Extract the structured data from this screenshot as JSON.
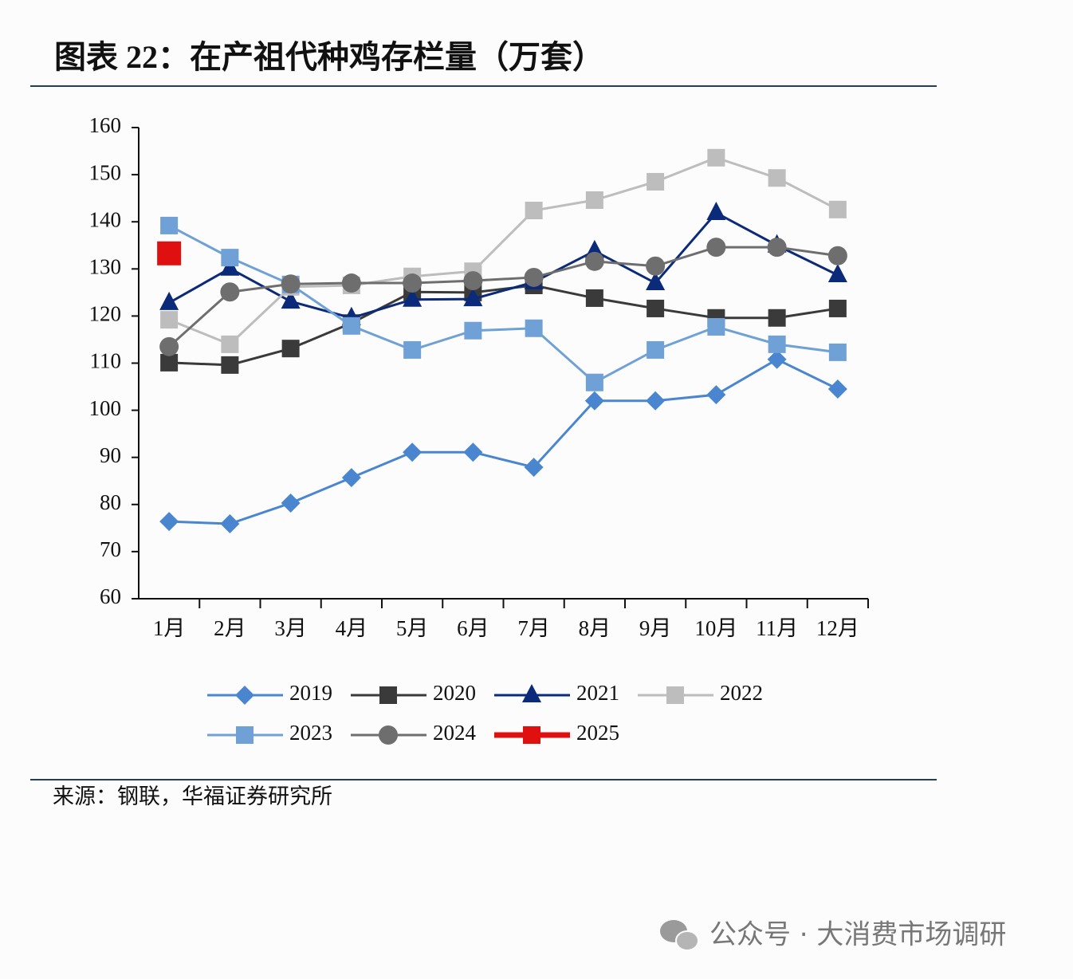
{
  "chart_data": {
    "type": "line",
    "title": "图表 22：在产祖代种鸡存栏量（万套）",
    "source": "来源：钢联，华福证券研究所",
    "watermark": "公众号 · 大消费市场调研",
    "categories": [
      "1月",
      "2月",
      "3月",
      "4月",
      "5月",
      "6月",
      "7月",
      "8月",
      "9月",
      "10月",
      "11月",
      "12月"
    ],
    "ylim": [
      60,
      160
    ],
    "yticks": [
      60,
      70,
      80,
      90,
      100,
      110,
      120,
      130,
      140,
      150,
      160
    ],
    "series": [
      {
        "name": "2019",
        "color": "#4a86d0",
        "marker": "diamond",
        "values": [
          76.4,
          75.9,
          80.3,
          85.7,
          91.1,
          91.1,
          87.9,
          102.0,
          102.0,
          103.3,
          110.8,
          104.5
        ]
      },
      {
        "name": "2020",
        "color": "#3a3a3a",
        "marker": "square",
        "values": [
          110.1,
          109.6,
          113.1,
          118.5,
          125.1,
          125.0,
          126.5,
          123.8,
          121.6,
          119.6,
          119.6,
          121.6
        ]
      },
      {
        "name": "2021",
        "color": "#0b2a7a",
        "marker": "triangle",
        "values": [
          122.8,
          130.1,
          123.1,
          119.6,
          123.5,
          123.6,
          127.2,
          133.8,
          127.0,
          141.9,
          135.0,
          128.7
        ]
      },
      {
        "name": "2022",
        "color": "#bdbdbd",
        "marker": "square",
        "values": [
          119.2,
          114.0,
          126.2,
          126.5,
          128.4,
          129.5,
          142.4,
          144.6,
          148.5,
          153.6,
          149.3,
          142.6
        ]
      },
      {
        "name": "2023",
        "color": "#6fa1d6",
        "marker": "square",
        "values": [
          139.2,
          132.4,
          126.7,
          117.9,
          112.8,
          116.9,
          117.4,
          105.9,
          112.8,
          117.7,
          114.0,
          112.3
        ]
      },
      {
        "name": "2024",
        "color": "#6e6e6e",
        "marker": "circle",
        "values": [
          113.5,
          125.1,
          126.8,
          127.0,
          127.0,
          127.5,
          128.2,
          131.6,
          130.6,
          134.6,
          134.6,
          132.8
        ]
      },
      {
        "name": "2025",
        "color": "#e01010",
        "marker": "bigsquare",
        "values": [
          133.3,
          null,
          null,
          null,
          null,
          null,
          null,
          null,
          null,
          null,
          null,
          null
        ]
      }
    ]
  }
}
